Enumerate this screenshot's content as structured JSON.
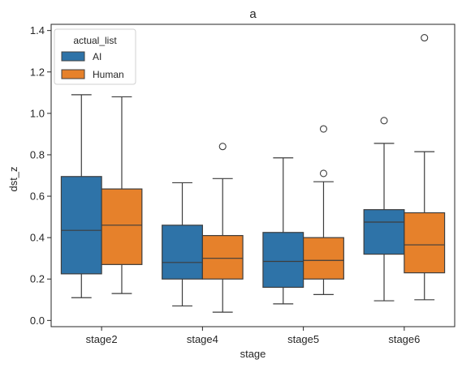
{
  "chart_data": {
    "type": "boxplot",
    "title": "a",
    "xlabel": "stage",
    "ylabel": "dst_z",
    "categories": [
      "stage2",
      "stage4",
      "stage5",
      "stage6"
    ],
    "ylim": [
      -0.03,
      1.43
    ],
    "yticks": [
      0.0,
      0.2,
      0.4,
      0.6,
      0.8,
      1.0,
      1.2,
      1.4
    ],
    "ytick_labels": [
      "0.0",
      "0.2",
      "0.4",
      "0.6",
      "0.8",
      "1.0",
      "1.2",
      "1.4"
    ],
    "grid": false,
    "legend": {
      "title": "actual_list",
      "placement": "top-left"
    },
    "series": [
      {
        "name": "AI",
        "color": "#2e73a8",
        "boxes": [
          {
            "whislo": 0.11,
            "q1": 0.225,
            "med": 0.435,
            "q3": 0.695,
            "whishi": 1.09,
            "fliers": []
          },
          {
            "whislo": 0.07,
            "q1": 0.2,
            "med": 0.28,
            "q3": 0.46,
            "whishi": 0.665,
            "fliers": []
          },
          {
            "whislo": 0.08,
            "q1": 0.16,
            "med": 0.285,
            "q3": 0.425,
            "whishi": 0.785,
            "fliers": []
          },
          {
            "whislo": 0.095,
            "q1": 0.32,
            "med": 0.475,
            "q3": 0.535,
            "whishi": 0.855,
            "fliers": [
              0.965
            ]
          }
        ]
      },
      {
        "name": "Human",
        "color": "#e6812b",
        "boxes": [
          {
            "whislo": 0.13,
            "q1": 0.27,
            "med": 0.46,
            "q3": 0.635,
            "whishi": 1.08,
            "fliers": []
          },
          {
            "whislo": 0.04,
            "q1": 0.2,
            "med": 0.3,
            "q3": 0.41,
            "whishi": 0.685,
            "fliers": [
              0.84
            ]
          },
          {
            "whislo": 0.125,
            "q1": 0.2,
            "med": 0.29,
            "q3": 0.4,
            "whishi": 0.67,
            "fliers": [
              0.71,
              0.925
            ]
          },
          {
            "whislo": 0.1,
            "q1": 0.23,
            "med": 0.365,
            "q3": 0.52,
            "whishi": 0.815,
            "fliers": [
              1.365
            ]
          }
        ]
      }
    ]
  }
}
